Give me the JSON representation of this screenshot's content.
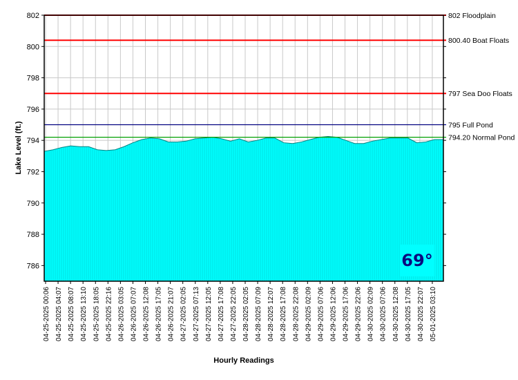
{
  "chart_data": {
    "type": "area",
    "title": "",
    "xlabel": "Hourly Readings",
    "ylabel": "Lake Level (ft.)",
    "ylim": [
      785,
      802
    ],
    "yticks": [
      786,
      788,
      790,
      792,
      794,
      796,
      798,
      800,
      802
    ],
    "grid": true,
    "fill_color": "#00ffff",
    "x_tick_labels": [
      "04-25-2025 00:06",
      "04-25-2025 04:07",
      "04-25-2025 08:07",
      "04-25-2025 13:10",
      "04-25-2025 18:05",
      "04-25-2025 22:16",
      "04-26-2025 03:05",
      "04-26-2025 07:07",
      "04-26-2025 12:08",
      "04-26-2025 17:05",
      "04-26-2025 21:07",
      "04-27-2025 02:05",
      "04-27-2025 07:13",
      "04-27-2025 12:05",
      "04-27-2025 17:08",
      "04-27-2025 22:05",
      "04-28-2025 02:05",
      "04-28-2025 07:09",
      "04-28-2025 12:07",
      "04-28-2025 17:08",
      "04-28-2025 22:08",
      "04-29-2025 02:09",
      "04-29-2025 07:06",
      "04-29-2025 12:06",
      "04-29-2025 17:06",
      "04-29-2025 22:06",
      "04-30-2025 02:09",
      "04-30-2025 07:06",
      "04-30-2025 12:08",
      "04-30-2025 17:05",
      "04-30-2025 22:07",
      "05-01-2025 03:10"
    ],
    "values": [
      793.3,
      793.4,
      793.55,
      793.65,
      793.6,
      793.6,
      793.4,
      793.35,
      793.4,
      793.6,
      793.85,
      794.05,
      794.15,
      794.1,
      793.9,
      793.9,
      793.95,
      794.1,
      794.15,
      794.2,
      794.1,
      793.95,
      794.1,
      793.9,
      794.0,
      794.15,
      794.15,
      793.85,
      793.8,
      793.9,
      794.05,
      794.2,
      794.25,
      794.2,
      794.0,
      793.8,
      793.8,
      793.95,
      794.05,
      794.15,
      794.15,
      794.15,
      793.85,
      793.9,
      794.05,
      794.05
    ],
    "reference_lines": [
      {
        "value": 802,
        "label": "802 Floodplain",
        "color": "#ff0000"
      },
      {
        "value": 800.4,
        "label": "800.40 Boat Floats",
        "color": "#ff0000"
      },
      {
        "value": 797,
        "label": "797 Sea Doo Floats",
        "color": "#ff0000"
      },
      {
        "value": 795,
        "label": "795 Full Pond",
        "color": "#000080"
      },
      {
        "value": 794.2,
        "label": "794.20 Normal Pond",
        "color": "#00a000"
      }
    ]
  },
  "temperature": "69°"
}
